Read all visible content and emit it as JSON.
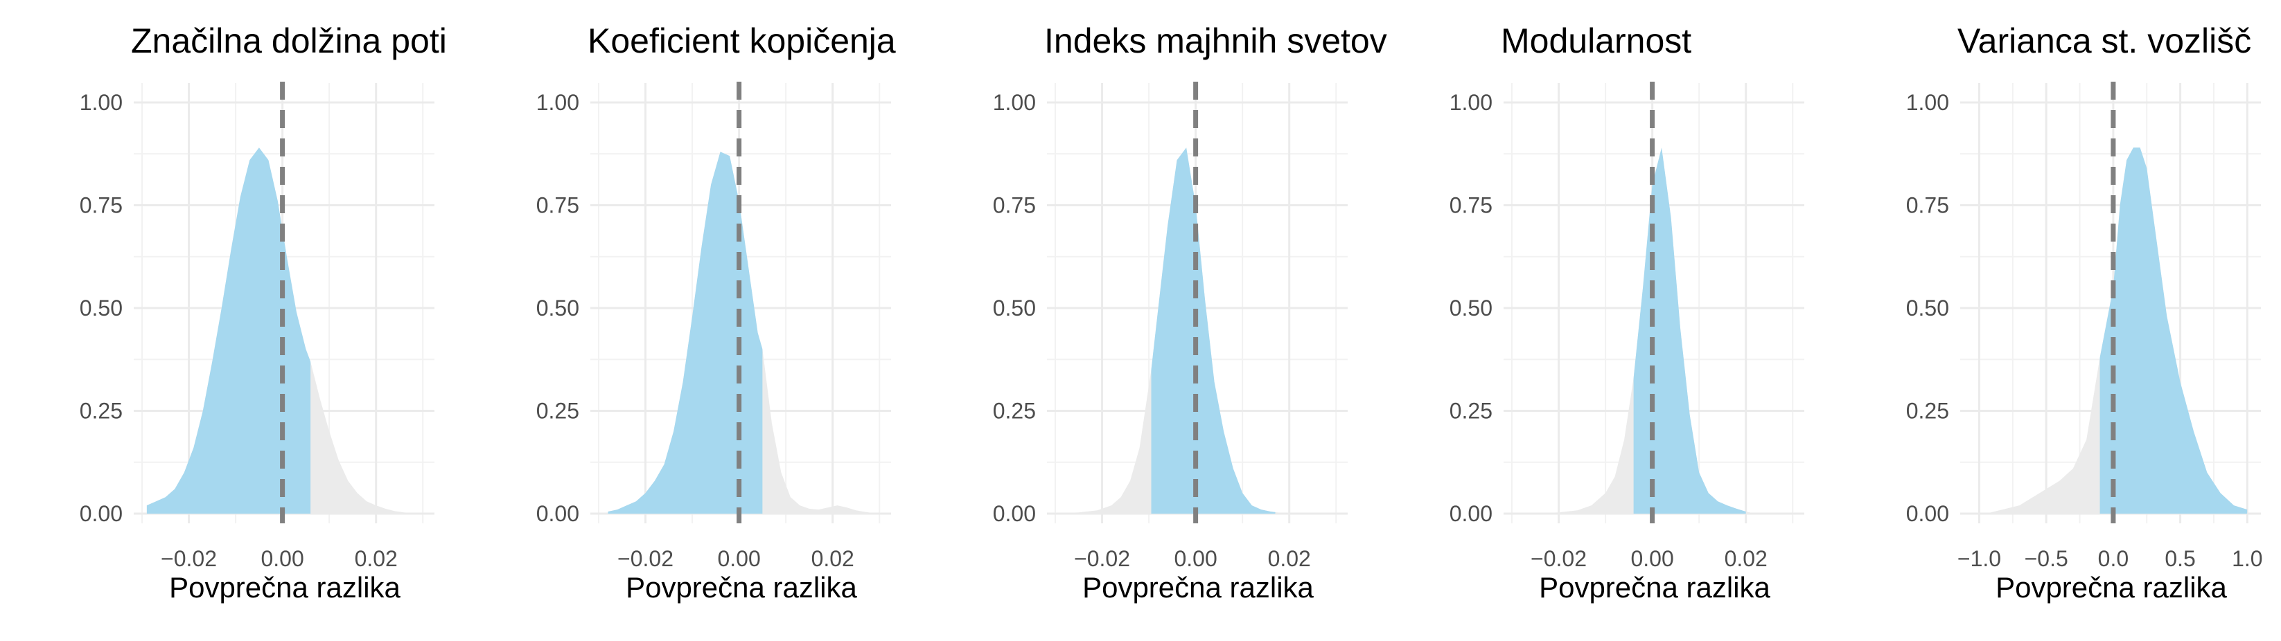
{
  "chart_data": [
    {
      "type": "area",
      "title": "Značilna dolžina poti",
      "xlabel": "Povprečna razlika",
      "ylabel": "",
      "xlim": [
        -0.03,
        0.031
      ],
      "ylim": [
        0,
        1.0
      ],
      "x_ticks": [
        "−0.02",
        "0.00",
        "0.02"
      ],
      "x_tick_values": [
        -0.02,
        0.0,
        0.02
      ],
      "y_ticks": [
        "0.00",
        "0.25",
        "0.50",
        "0.75",
        "1.00"
      ],
      "y_tick_values": [
        0,
        0.25,
        0.5,
        0.75,
        1.0
      ],
      "highlight_range": [
        -0.029,
        0.006
      ],
      "reference_line_x": 0,
      "grid": true,
      "fill_color": "#a6d8ef",
      "tail_color": "#ebebeb",
      "line_color": "#808080",
      "density": {
        "x": [
          -0.029,
          -0.027,
          -0.025,
          -0.023,
          -0.021,
          -0.019,
          -0.017,
          -0.015,
          -0.013,
          -0.011,
          -0.009,
          -0.007,
          -0.005,
          -0.003,
          -0.001,
          0.001,
          0.003,
          0.005,
          0.006,
          0.008,
          0.01,
          0.012,
          0.014,
          0.016,
          0.018,
          0.02,
          0.022,
          0.024,
          0.026,
          0.028
        ],
        "y": [
          0.02,
          0.03,
          0.04,
          0.06,
          0.1,
          0.16,
          0.25,
          0.37,
          0.5,
          0.64,
          0.77,
          0.86,
          0.89,
          0.86,
          0.76,
          0.62,
          0.49,
          0.4,
          0.37,
          0.28,
          0.2,
          0.13,
          0.08,
          0.05,
          0.03,
          0.02,
          0.012,
          0.006,
          0.003,
          0.001
        ]
      }
    },
    {
      "type": "area",
      "title": "Koeficient kopičenja",
      "xlabel": "Povprečna razlika",
      "ylabel": "",
      "xlim": [
        -0.03,
        0.031
      ],
      "ylim": [
        0,
        1.0
      ],
      "x_ticks": [
        "−0.02",
        "0.00",
        "0.02"
      ],
      "x_tick_values": [
        -0.02,
        0.0,
        0.02
      ],
      "y_ticks": [
        "0.00",
        "0.25",
        "0.50",
        "0.75",
        "1.00"
      ],
      "y_tick_values": [
        0,
        0.25,
        0.5,
        0.75,
        1.0
      ],
      "highlight_range": [
        -0.028,
        0.005
      ],
      "reference_line_x": 0,
      "grid": true,
      "fill_color": "#a6d8ef",
      "tail_color": "#ebebeb",
      "line_color": "#808080",
      "density": {
        "x": [
          -0.028,
          -0.026,
          -0.024,
          -0.022,
          -0.02,
          -0.018,
          -0.016,
          -0.014,
          -0.012,
          -0.01,
          -0.008,
          -0.006,
          -0.004,
          -0.002,
          0.0,
          0.002,
          0.004,
          0.005,
          0.007,
          0.009,
          0.011,
          0.013,
          0.015,
          0.017,
          0.019,
          0.021,
          0.023,
          0.025,
          0.027,
          0.029
        ],
        "y": [
          0.005,
          0.01,
          0.02,
          0.03,
          0.05,
          0.08,
          0.12,
          0.2,
          0.32,
          0.48,
          0.65,
          0.8,
          0.88,
          0.87,
          0.76,
          0.6,
          0.44,
          0.4,
          0.22,
          0.1,
          0.04,
          0.02,
          0.012,
          0.01,
          0.015,
          0.02,
          0.015,
          0.008,
          0.004,
          0.001
        ]
      }
    },
    {
      "type": "area",
      "title": "Indeks majhnih svetov",
      "xlabel": "Povprečna razlika",
      "ylabel": "",
      "xlim": [
        -0.03,
        0.031
      ],
      "ylim": [
        0,
        1.0
      ],
      "x_ticks": [
        "−0.02",
        "0.00",
        "0.02"
      ],
      "x_tick_values": [
        -0.02,
        0.0,
        0.02
      ],
      "y_ticks": [
        "0.00",
        "0.25",
        "0.50",
        "0.75",
        "1.00"
      ],
      "y_tick_values": [
        0,
        0.25,
        0.5,
        0.75,
        1.0
      ],
      "highlight_range": [
        -0.0095,
        0.017
      ],
      "reference_line_x": 0,
      "grid": true,
      "fill_color": "#a6d8ef",
      "tail_color": "#ebebeb",
      "line_color": "#808080",
      "density": {
        "x": [
          -0.029,
          -0.025,
          -0.021,
          -0.018,
          -0.016,
          -0.014,
          -0.012,
          -0.0095,
          -0.008,
          -0.006,
          -0.004,
          -0.002,
          0.0,
          0.002,
          0.004,
          0.006,
          0.008,
          0.01,
          0.012,
          0.014,
          0.016,
          0.018,
          0.02,
          0.022
        ],
        "y": [
          0.001,
          0.003,
          0.008,
          0.02,
          0.04,
          0.08,
          0.16,
          0.35,
          0.5,
          0.7,
          0.86,
          0.89,
          0.75,
          0.52,
          0.32,
          0.2,
          0.11,
          0.05,
          0.02,
          0.01,
          0.005,
          0.002,
          0.001,
          0.0
        ]
      }
    },
    {
      "type": "area",
      "title": "Modularnost",
      "xlabel": "Povprečna razlika",
      "ylabel": "",
      "xlim": [
        -0.03,
        0.031
      ],
      "ylim": [
        0,
        1.0
      ],
      "x_ticks": [
        "−0.02",
        "0.00",
        "0.02"
      ],
      "x_tick_values": [
        -0.02,
        0.0,
        0.02
      ],
      "y_ticks": [
        "0.00",
        "0.25",
        "0.50",
        "0.75",
        "1.00"
      ],
      "y_tick_values": [
        0,
        0.25,
        0.5,
        0.75,
        1.0
      ],
      "highlight_range": [
        -0.004,
        0.02
      ],
      "reference_line_x": 0,
      "grid": true,
      "fill_color": "#a6d8ef",
      "tail_color": "#ebebeb",
      "line_color": "#808080",
      "density": {
        "x": [
          -0.029,
          -0.024,
          -0.02,
          -0.016,
          -0.013,
          -0.01,
          -0.008,
          -0.006,
          -0.004,
          -0.002,
          0.0,
          0.002,
          0.004,
          0.006,
          0.008,
          0.01,
          0.012,
          0.014,
          0.016,
          0.018,
          0.02,
          0.022
        ],
        "y": [
          0.0,
          0.001,
          0.003,
          0.008,
          0.02,
          0.05,
          0.09,
          0.18,
          0.33,
          0.55,
          0.8,
          0.89,
          0.72,
          0.45,
          0.24,
          0.1,
          0.05,
          0.03,
          0.02,
          0.012,
          0.005,
          0.0
        ]
      }
    },
    {
      "type": "area",
      "title": "Varianca st. vozlišč",
      "xlabel": "Povprečna razlika",
      "ylabel": "",
      "xlim": [
        -1.08,
        1.05
      ],
      "ylim": [
        0,
        1.0
      ],
      "x_ticks": [
        "−1.0",
        "−0.5",
        "0.0",
        "0.5",
        "1.0"
      ],
      "x_tick_values": [
        -1.0,
        -0.5,
        0.0,
        0.5,
        1.0
      ],
      "y_ticks": [
        "0.00",
        "0.25",
        "0.50",
        "0.75",
        "1.00"
      ],
      "y_tick_values": [
        0,
        0.25,
        0.5,
        0.75,
        1.0
      ],
      "highlight_range": [
        -0.1,
        1.0
      ],
      "reference_line_x": 0,
      "grid": true,
      "fill_color": "#a6d8ef",
      "tail_color": "#ebebeb",
      "line_color": "#808080",
      "density": {
        "x": [
          -0.95,
          -0.7,
          -0.5,
          -0.4,
          -0.3,
          -0.2,
          -0.1,
          0.0,
          0.05,
          0.1,
          0.15,
          0.2,
          0.25,
          0.3,
          0.4,
          0.5,
          0.6,
          0.7,
          0.8,
          0.9,
          1.0
        ],
        "y": [
          0.0,
          0.02,
          0.06,
          0.08,
          0.11,
          0.18,
          0.38,
          0.55,
          0.75,
          0.86,
          0.89,
          0.89,
          0.84,
          0.72,
          0.48,
          0.32,
          0.2,
          0.1,
          0.05,
          0.02,
          0.01
        ]
      }
    }
  ]
}
